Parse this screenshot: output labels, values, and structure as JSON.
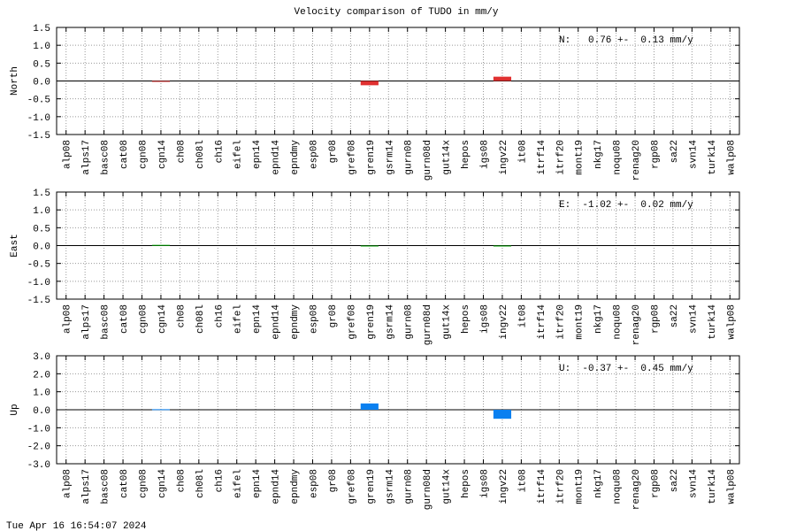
{
  "title": "Velocity comparison of TUDO in mm/y",
  "footer": "Tue Apr 16 16:54:07 2024",
  "chart_data": [
    {
      "type": "bar",
      "ylabel": "North",
      "annotation": "N:   0.76 +-  0.13 mm/y",
      "color": "#e03131",
      "grid": true,
      "categories": [
        "alp08",
        "alps17",
        "basc08",
        "cat08",
        "cgn08",
        "cgn14",
        "ch08",
        "ch08l",
        "ch16",
        "eifel",
        "epn14",
        "epnd14",
        "epndmy",
        "esp08",
        "gr08",
        "gref08",
        "gren19",
        "gsrm14",
        "gurn08",
        "gurn08d",
        "gut14x",
        "hepos",
        "igs08",
        "ingv22",
        "it08",
        "itrf14",
        "itrf20",
        "mont19",
        "nkg17",
        "noqu08",
        "renag20",
        "rgp08",
        "sa22",
        "svn14",
        "turk14",
        "walp08"
      ],
      "values": [
        null,
        null,
        null,
        null,
        null,
        -0.02,
        null,
        null,
        null,
        null,
        null,
        null,
        null,
        null,
        null,
        null,
        -0.12,
        null,
        null,
        null,
        null,
        null,
        null,
        0.12,
        null,
        null,
        null,
        null,
        null,
        null,
        null,
        null,
        null,
        null,
        null,
        null
      ],
      "ylim": [
        -1.5,
        1.5
      ],
      "yticks": [
        {
          "value": -1.5,
          "label": "-1.5"
        },
        {
          "value": -1,
          "label": "-1.0"
        },
        {
          "value": -0.5,
          "label": "-0.5"
        },
        {
          "value": 0,
          "label": "0.0"
        },
        {
          "value": 0.5,
          "label": "0.5"
        },
        {
          "value": 1,
          "label": "1.0"
        },
        {
          "value": 1.5,
          "label": "1.5"
        }
      ]
    },
    {
      "type": "bar",
      "ylabel": "East",
      "annotation": "E:  -1.02 +-  0.02 mm/y",
      "color": "#00a000",
      "grid": true,
      "categories": [
        "alp08",
        "alps17",
        "basc08",
        "cat08",
        "cgn08",
        "cgn14",
        "ch08",
        "ch08l",
        "ch16",
        "eifel",
        "epn14",
        "epnd14",
        "epndmy",
        "esp08",
        "gr08",
        "gref08",
        "gren19",
        "gsrm14",
        "gurn08",
        "gurn08d",
        "gut14x",
        "hepos",
        "igs08",
        "ingv22",
        "it08",
        "itrf14",
        "itrf20",
        "mont19",
        "nkg17",
        "noqu08",
        "renag20",
        "rgp08",
        "sa22",
        "svn14",
        "turk14",
        "walp08"
      ],
      "values": [
        null,
        null,
        null,
        null,
        null,
        0.02,
        null,
        null,
        null,
        null,
        null,
        null,
        null,
        null,
        null,
        null,
        -0.02,
        null,
        null,
        null,
        null,
        null,
        null,
        -0.02,
        null,
        null,
        null,
        null,
        null,
        null,
        null,
        null,
        null,
        null,
        null,
        null
      ],
      "ylim": [
        -1.5,
        1.5
      ],
      "yticks": [
        {
          "value": -1.5,
          "label": "-1.5"
        },
        {
          "value": -1,
          "label": "-1.0"
        },
        {
          "value": -0.5,
          "label": "-0.5"
        },
        {
          "value": 0,
          "label": "0.0"
        },
        {
          "value": 0.5,
          "label": "0.5"
        },
        {
          "value": 1,
          "label": "1.0"
        },
        {
          "value": 1.5,
          "label": "1.5"
        }
      ]
    },
    {
      "type": "bar",
      "ylabel": "Up",
      "annotation": "U:  -0.37 +-  0.45 mm/y",
      "color": "#0a80f0",
      "grid": true,
      "categories": [
        "alp08",
        "alps17",
        "basc08",
        "cat08",
        "cgn08",
        "cgn14",
        "ch08",
        "ch08l",
        "ch16",
        "eifel",
        "epn14",
        "epnd14",
        "epndmy",
        "esp08",
        "gr08",
        "gref08",
        "gren19",
        "gsrm14",
        "gurn08",
        "gurn08d",
        "gut14x",
        "hepos",
        "igs08",
        "ingv22",
        "it08",
        "itrf14",
        "itrf20",
        "mont19",
        "nkg17",
        "noqu08",
        "renag20",
        "rgp08",
        "sa22",
        "svn14",
        "turk14",
        "walp08"
      ],
      "values": [
        null,
        null,
        null,
        null,
        null,
        0.03,
        null,
        null,
        null,
        null,
        null,
        null,
        null,
        null,
        null,
        null,
        0.35,
        null,
        null,
        null,
        null,
        null,
        null,
        -0.5,
        null,
        null,
        null,
        null,
        null,
        null,
        null,
        null,
        null,
        null,
        null,
        null
      ],
      "ylim": [
        -3,
        3
      ],
      "yticks": [
        {
          "value": -3,
          "label": "-3.0"
        },
        {
          "value": -2,
          "label": "-2.0"
        },
        {
          "value": -1,
          "label": "-1.0"
        },
        {
          "value": 0,
          "label": "0.0"
        },
        {
          "value": 1,
          "label": "1.0"
        },
        {
          "value": 2,
          "label": "2.0"
        },
        {
          "value": 3,
          "label": "3.0"
        }
      ]
    }
  ]
}
